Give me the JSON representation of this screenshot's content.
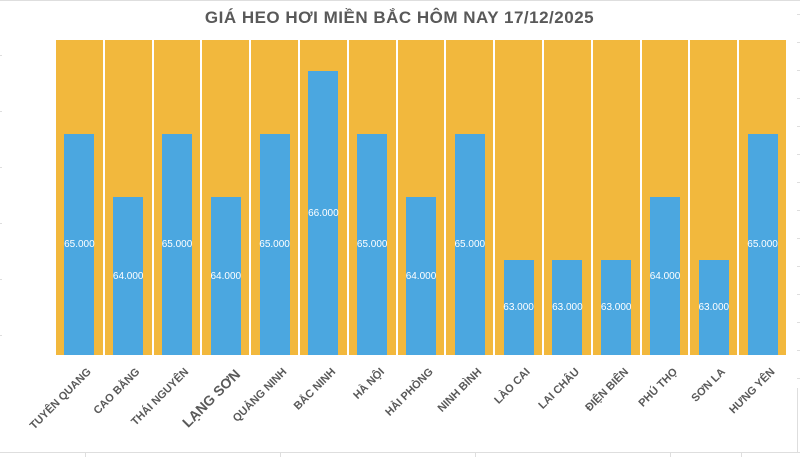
{
  "title": "GIÁ HEO HƠI MIỀN BẮC HÔM NAY 17/12/2025",
  "colors": {
    "bar_blue": "#4BA7E0",
    "background_bar_yellow": "#F2B83D",
    "title_text": "#595959",
    "axis_text": "#595959",
    "data_label": "#FFFFFF",
    "sheet_grid": "#DEDEDE"
  },
  "chart_data": {
    "type": "bar",
    "title": "GIÁ HEO HƠI MIỀN BẮC HÔM NAY 17/12/2025",
    "categories": [
      "TUYÊN QUANG",
      "CAO BẰNG",
      "THÁI NGUYÊN",
      "LẠNG SƠN",
      "QUẢNG NINH",
      "BẮC NINH",
      "HÀ NỘI",
      "HẢI PHÒNG",
      "NINH BÌNH",
      "LÀO CAI",
      "LAI CHÂU",
      "ĐIỆN BIÊN",
      "PHÚ THỌ",
      "SƠN LA",
      "HƯNG YÊN"
    ],
    "values": [
      65000,
      64000,
      65000,
      64000,
      65000,
      66000,
      65000,
      64000,
      65000,
      63000,
      63000,
      63000,
      64000,
      63000,
      65000
    ],
    "labels": [
      "65.000",
      "64.000",
      "65.000",
      "64.000",
      "65.000",
      "66.000",
      "65.000",
      "64.000",
      "65.000",
      "63.000",
      "63.000",
      "63.000",
      "64.000",
      "63.000",
      "65.000"
    ],
    "xlabel": "",
    "ylabel": "",
    "ylim": [
      61500,
      66500
    ],
    "background_series_value": 66500,
    "emphasized_category_index": 3,
    "legend": "none",
    "grid": false,
    "data_label_position": "center",
    "axis_ticks_visible": false
  }
}
